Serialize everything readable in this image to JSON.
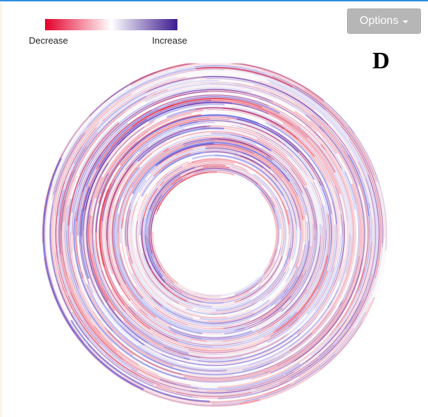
{
  "legend": {
    "low_label": "Decrease",
    "high_label": "Increase",
    "low_color": "#e4002b",
    "mid_color": "#ffffff",
    "high_color": "#3d1a8f"
  },
  "toolbar": {
    "options_label": "Options",
    "options_icon": "caret-down-icon"
  },
  "panel": {
    "letter": "D"
  },
  "colors": {
    "decrease": "#e8203a",
    "increase": "#3a3ad8",
    "top_border": "#2f8fe0",
    "button_bg": "#b6b6b6"
  }
}
